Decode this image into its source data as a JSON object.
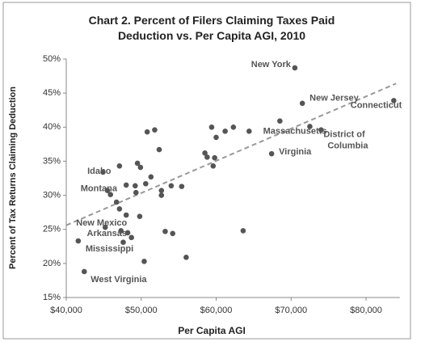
{
  "chart_data": {
    "type": "scatter",
    "title": "Chart 2. Percent of Filers Claiming Taxes Paid Deduction vs. Per Capita AGI, 2010",
    "x_label": "Per Capita AGI",
    "y_label": "Percent of Tax Returns Claiming Deduction",
    "color": "#555555",
    "x": [
      70500,
      71500,
      83700,
      72500,
      74000,
      68500,
      67400,
      64400,
      62300,
      59400,
      60000,
      61200,
      58500,
      58800,
      59800,
      59600,
      50800,
      51800,
      52400,
      49500,
      49900,
      47100,
      51300,
      48000,
      49200,
      50600,
      49300,
      52700,
      52700,
      54000,
      55400,
      44900,
      45500,
      45900,
      46700,
      47100,
      48000,
      49800,
      45200,
      47300,
      48200,
      48700,
      47600,
      41600,
      53200,
      54200,
      63600,
      56000,
      50400,
      42400
    ],
    "y": [
      48.7,
      43.5,
      43.9,
      40.1,
      39.6,
      40.9,
      36.1,
      39.4,
      40.0,
      40.0,
      38.5,
      39.4,
      36.2,
      35.6,
      35.5,
      34.3,
      39.3,
      39.6,
      36.7,
      34.7,
      34.1,
      34.3,
      32.7,
      31.5,
      31.4,
      31.7,
      30.4,
      30.7,
      30.0,
      31.4,
      31.3,
      33.4,
      30.7,
      30.1,
      29.0,
      28.0,
      27.1,
      26.9,
      25.3,
      24.8,
      24.5,
      23.8,
      23.1,
      23.3,
      24.7,
      24.4,
      24.8,
      20.9,
      20.3,
      18.8
    ],
    "point_labels": [
      "New York",
      "New Jersey",
      "Connecticut",
      "Massachusetts",
      "District of Columbia",
      null,
      "Virginia",
      null,
      null,
      null,
      null,
      null,
      null,
      null,
      null,
      null,
      null,
      null,
      null,
      null,
      null,
      null,
      null,
      null,
      null,
      null,
      null,
      null,
      null,
      null,
      null,
      "Idaho",
      "Montana",
      null,
      null,
      null,
      null,
      null,
      "New Mexico",
      null,
      "Arkansas",
      null,
      null,
      "Mississippi",
      null,
      null,
      null,
      null,
      null,
      "West Virginia"
    ],
    "trendline": {
      "x": [
        40000,
        84000
      ],
      "y": [
        25.6,
        46.4
      ]
    },
    "xlim": [
      40000,
      84500
    ],
    "ylim": [
      15,
      50
    ],
    "xticks": [
      {
        "value": 40000,
        "label": "$40,000"
      },
      {
        "value": 50000,
        "label": "$50,000"
      },
      {
        "value": 60000,
        "label": "$60,000"
      },
      {
        "value": 70000,
        "label": "$70,000"
      },
      {
        "value": 80000,
        "label": "$80,000"
      }
    ],
    "yticks": [
      {
        "value": 15,
        "label": "15%"
      },
      {
        "value": 20,
        "label": "20%"
      },
      {
        "value": 25,
        "label": "25%"
      },
      {
        "value": 30,
        "label": "30%"
      },
      {
        "value": 35,
        "label": "35%"
      },
      {
        "value": 40,
        "label": "40%"
      },
      {
        "value": 45,
        "label": "45%"
      },
      {
        "value": 50,
        "label": "50%"
      }
    ],
    "grid": false
  }
}
